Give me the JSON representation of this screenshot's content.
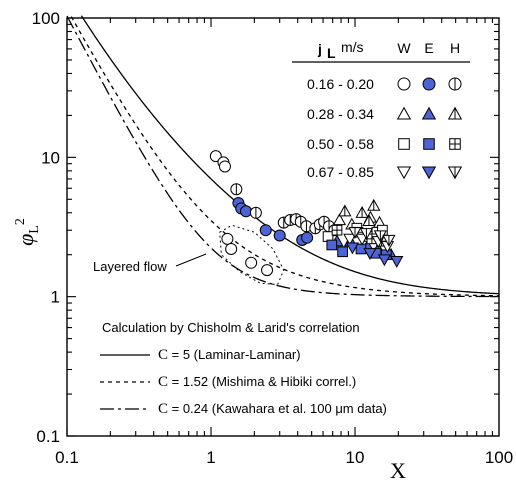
{
  "chart_data": {
    "type": "scatter",
    "x_scale": "log",
    "y_scale": "log",
    "xlim": [
      0.1,
      100
    ],
    "ylim": [
      0.1,
      100
    ],
    "x_ticks": [
      "0.1",
      "1",
      "10",
      "100"
    ],
    "y_ticks": [
      "0.1",
      "1",
      "10",
      "100"
    ],
    "xlabel": "X",
    "ylabel": "φL²",
    "grid": false,
    "legend": {
      "placement": "top-right",
      "header": {
        "var": "j",
        "sub": "L",
        "unit": "m/s",
        "cols": [
          "W",
          "E",
          "H"
        ]
      },
      "rows": [
        {
          "range": "0.16 - 0.20",
          "shape": "circle"
        },
        {
          "range": "0.28 - 0.34",
          "shape": "triangle-up"
        },
        {
          "range": "0.50 - 0.58",
          "shape": "square"
        },
        {
          "range": "0.67 - 0.85",
          "shape": "triangle-down"
        }
      ]
    },
    "annotations": {
      "layered_flow": "Layered flow",
      "calc_title": "Calculation by Chisholm & Larid's correlation"
    },
    "curves": [
      {
        "C": 5,
        "c_label": "C",
        "rest": " = 5 (Laminar-Laminar)",
        "style": "solid"
      },
      {
        "C": 1.52,
        "c_label": "C",
        "rest": " = 1.52 (Mishima & Hibiki correl.)",
        "style": "dashed"
      },
      {
        "C": 0.24,
        "c_label": "C",
        "rest": " = 0.24 (Kawahara et al. 100 μm data)",
        "style": "dashdot"
      }
    ],
    "series": [
      {
        "group": "0.16 - 0.20",
        "fill": "W",
        "shape": "circle",
        "points": [
          [
            1.08,
            10.2
          ],
          [
            1.22,
            9.2
          ],
          [
            1.25,
            8.6
          ],
          [
            1.3,
            2.6
          ],
          [
            1.38,
            2.2
          ],
          [
            1.9,
            1.75
          ],
          [
            2.45,
            1.55
          ]
        ]
      },
      {
        "group": "0.16 - 0.20",
        "fill": "E",
        "shape": "circle",
        "points": [
          [
            1.55,
            4.7
          ],
          [
            1.62,
            4.3
          ],
          [
            1.75,
            4.1
          ],
          [
            2.4,
            3.0
          ],
          [
            3.0,
            2.75
          ],
          [
            4.3,
            2.55
          ],
          [
            4.65,
            2.65
          ]
        ]
      },
      {
        "group": "0.16 - 0.20",
        "fill": "H",
        "shape": "circle",
        "points": [
          [
            1.5,
            5.9
          ],
          [
            2.05,
            4.0
          ],
          [
            3.2,
            3.4
          ],
          [
            3.55,
            3.55
          ],
          [
            3.9,
            3.6
          ],
          [
            4.2,
            3.45
          ],
          [
            4.6,
            3.2
          ],
          [
            5.3,
            3.1
          ],
          [
            5.7,
            3.3
          ],
          [
            6.1,
            3.45
          ],
          [
            6.6,
            3.2
          ],
          [
            7.2,
            3.0
          ]
        ]
      },
      {
        "group": "0.28 - 0.34",
        "fill": "W",
        "shape": "triangle-up",
        "points": [
          [
            7.8,
            3.55
          ],
          [
            9.5,
            3.3
          ],
          [
            12.8,
            3.7
          ],
          [
            14.8,
            3.4
          ]
        ]
      },
      {
        "group": "0.28 - 0.34",
        "fill": "E",
        "shape": "triangle-up",
        "points": [
          [
            7.5,
            2.5
          ],
          [
            9.3,
            2.5
          ],
          [
            12.2,
            2.3
          ],
          [
            14.5,
            2.2
          ],
          [
            17.8,
            2.0
          ]
        ]
      },
      {
        "group": "0.28 - 0.34",
        "fill": "H",
        "shape": "triangle-up",
        "points": [
          [
            8.5,
            4.1
          ],
          [
            11.2,
            4.0
          ],
          [
            13.5,
            4.5
          ],
          [
            12.5,
            3.5
          ]
        ]
      },
      {
        "group": "0.50 - 0.58",
        "fill": "W",
        "shape": "square",
        "points": [
          [
            6.5,
            2.7
          ],
          [
            10.3,
            3.1
          ],
          [
            12.6,
            2.7
          ],
          [
            14.2,
            2.9
          ],
          [
            15.5,
            3.0
          ]
        ]
      },
      {
        "group": "0.50 - 0.58",
        "fill": "E",
        "shape": "square",
        "points": [
          [
            6.9,
            2.35
          ],
          [
            8.2,
            2.1
          ],
          [
            11.0,
            2.2
          ],
          [
            14.0,
            2.05
          ],
          [
            16.5,
            2.0
          ]
        ]
      },
      {
        "group": "0.50 - 0.58",
        "fill": "H",
        "shape": "square",
        "points": [
          [
            7.5,
            3.0
          ],
          [
            10.5,
            2.9
          ],
          [
            13.1,
            2.6
          ],
          [
            15.3,
            2.5
          ]
        ]
      },
      {
        "group": "0.67 - 0.85",
        "fill": "W",
        "shape": "triangle-down",
        "points": [
          [
            9.2,
            2.6
          ],
          [
            11.2,
            2.6
          ],
          [
            14.5,
            2.5
          ],
          [
            16.8,
            2.3
          ]
        ]
      },
      {
        "group": "0.67 - 0.85",
        "fill": "E",
        "shape": "triangle-down",
        "points": [
          [
            9.6,
            2.25
          ],
          [
            12.7,
            2.05
          ],
          [
            16.0,
            1.85
          ],
          [
            19.5,
            1.8
          ]
        ]
      },
      {
        "group": "0.67 - 0.85",
        "fill": "H",
        "shape": "triangle-down",
        "points": [
          [
            10.0,
            2.9
          ],
          [
            12.0,
            2.85
          ],
          [
            15.0,
            2.75
          ],
          [
            17.2,
            2.55
          ]
        ]
      }
    ],
    "colors": {
      "filled_marker": "#4e63d6",
      "line": "#000000"
    }
  }
}
